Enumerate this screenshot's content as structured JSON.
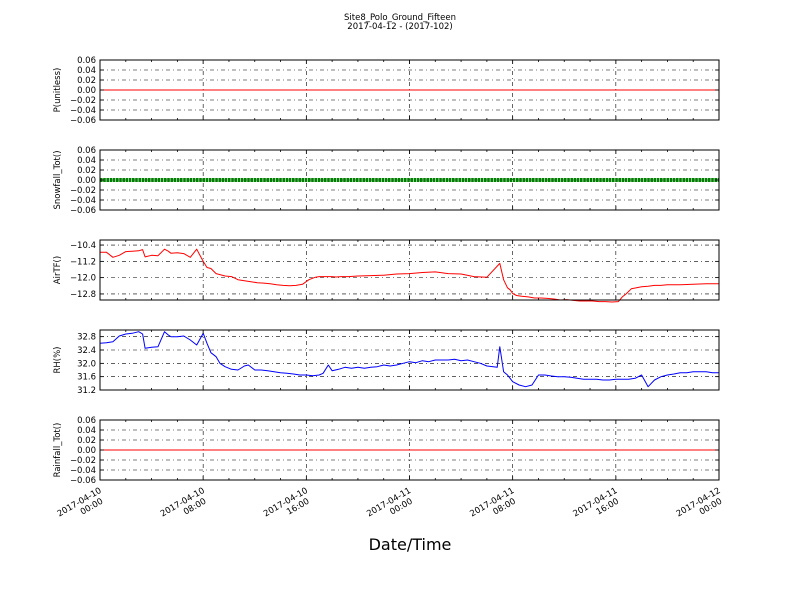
{
  "page": {
    "title_line1": "Site8_Polo_Ground_Fifteen",
    "title_line2": "2017-04-12 - (2017-102)",
    "x_axis_label": "Date/Time"
  },
  "colors": {
    "red": "#ff0000",
    "green": "#008000",
    "blue": "#0000ff",
    "axis": "#000000",
    "grid": "#000000"
  },
  "chart_data": [
    {
      "type": "line",
      "ylabel": "P(unitless)",
      "ylim": [
        -0.06,
        0.06
      ],
      "yticks": [
        0.06,
        0.04,
        0.02,
        0.0,
        -0.02,
        -0.04,
        -0.06
      ],
      "ytick_labels": [
        "0.06",
        "0.04",
        "0.02",
        "0.00",
        "−0.02",
        "−0.04",
        "−0.06"
      ],
      "grid": true,
      "series": [
        {
          "color": "#ff0000",
          "marker": "none",
          "x": [
            0,
            48
          ],
          "y": [
            0,
            0
          ]
        }
      ]
    },
    {
      "type": "line",
      "ylabel": "Snowfall_Tot()",
      "ylim": [
        -0.06,
        0.06
      ],
      "yticks": [
        0.06,
        0.04,
        0.02,
        0.0,
        -0.02,
        -0.04,
        -0.06
      ],
      "ytick_labels": [
        "0.06",
        "0.04",
        "0.02",
        "0.00",
        "−0.02",
        "−0.04",
        "−0.06"
      ],
      "grid": true,
      "series": [
        {
          "color": "#008000",
          "marker": "dot",
          "x": [
            0,
            48
          ],
          "y": [
            0,
            0
          ]
        }
      ]
    },
    {
      "type": "line",
      "ylabel": "AirTF()",
      "ylim": [
        -13.1,
        -10.15
      ],
      "yticks": [
        -10.4,
        -11.2,
        -12.0,
        -12.8
      ],
      "ytick_labels": [
        "−10.4",
        "−11.2",
        "−12.0",
        "−12.8"
      ],
      "grid": true,
      "series": [
        {
          "color": "#ff0000",
          "marker": "none",
          "x": [
            0,
            0.5,
            1.0,
            1.5,
            2.0,
            2.5,
            3.0,
            3.3,
            3.5,
            4.0,
            4.5,
            5.0,
            5.3,
            5.5,
            6.0,
            6.5,
            7.0,
            7.5,
            8.0,
            8.3,
            8.6,
            9.0,
            9.3,
            9.7,
            10.2,
            10.7,
            11.2,
            11.7,
            12.2,
            12.7,
            13.2,
            13.7,
            14.2,
            14.7,
            15.2,
            15.7,
            16.2,
            16.7,
            17.0,
            17.4,
            17.7,
            18.0,
            18.3,
            18.7,
            19.3,
            20,
            21,
            22,
            23,
            24,
            25,
            26,
            27,
            28,
            29,
            30,
            31,
            31.3,
            31.6,
            31.8,
            32.0,
            32.3,
            32.7,
            33.2,
            33.7,
            34.2,
            34.7,
            35.2,
            35.7,
            36.2,
            36.7,
            37.2,
            37.7,
            38.2,
            38.7,
            39.2,
            39.7,
            40.2,
            40.5,
            40.8,
            41.2,
            41.6,
            42.0,
            42.5,
            43.0,
            43.5,
            44,
            45,
            46,
            47,
            48
          ],
          "y": [
            -10.75,
            -10.75,
            -11.0,
            -10.9,
            -10.72,
            -10.7,
            -10.68,
            -10.62,
            -10.98,
            -10.9,
            -10.92,
            -10.6,
            -10.7,
            -10.8,
            -10.78,
            -10.82,
            -11.0,
            -10.6,
            -11.2,
            -11.5,
            -11.55,
            -11.8,
            -11.85,
            -11.92,
            -11.95,
            -12.1,
            -12.15,
            -12.2,
            -12.25,
            -12.27,
            -12.3,
            -12.35,
            -12.38,
            -12.4,
            -12.38,
            -12.33,
            -12.1,
            -11.98,
            -11.95,
            -11.95,
            -11.95,
            -11.95,
            -11.97,
            -11.95,
            -11.95,
            -11.92,
            -11.9,
            -11.88,
            -11.82,
            -11.8,
            -11.75,
            -11.72,
            -11.8,
            -11.82,
            -11.95,
            -11.98,
            -11.3,
            -12.1,
            -12.5,
            -12.6,
            -12.78,
            -12.88,
            -12.92,
            -12.95,
            -13.0,
            -13.0,
            -13.02,
            -13.05,
            -13.1,
            -13.08,
            -13.12,
            -13.15,
            -13.15,
            -13.15,
            -13.18,
            -13.18,
            -13.2,
            -13.18,
            -12.95,
            -12.8,
            -12.55,
            -12.5,
            -12.45,
            -12.42,
            -12.38,
            -12.38,
            -12.35,
            -12.35,
            -12.33,
            -12.3,
            -12.3
          ]
        }
      ]
    },
    {
      "type": "line",
      "ylabel": "RH(%)",
      "ylim": [
        31.2,
        33.0
      ],
      "yticks": [
        32.8,
        32.4,
        32.0,
        31.6,
        31.2
      ],
      "ytick_labels": [
        "32.8",
        "32.4",
        "32.0",
        "31.6",
        "31.2"
      ],
      "grid": true,
      "series": [
        {
          "color": "#0000ff",
          "marker": "none",
          "x": [
            0,
            0.5,
            1.0,
            1.5,
            2.0,
            2.5,
            3.0,
            3.3,
            3.5,
            4.0,
            4.5,
            5.0,
            5.3,
            5.5,
            6.0,
            6.5,
            7.0,
            7.5,
            8.0,
            8.3,
            8.6,
            9.0,
            9.3,
            9.7,
            10.2,
            10.7,
            11.2,
            11.5,
            12.0,
            12.5,
            13.0,
            13.5,
            14.0,
            14.5,
            15.0,
            15.5,
            16.0,
            16.5,
            17.0,
            17.3,
            17.7,
            18.0,
            18.5,
            19.0,
            19.5,
            20,
            20.5,
            21,
            21.5,
            22,
            22.5,
            23,
            23.5,
            24,
            24.5,
            25,
            25.5,
            26,
            26.5,
            27,
            27.5,
            28,
            28.5,
            29,
            29.5,
            30,
            30.5,
            30.8,
            31.0,
            31.3,
            31.6,
            32.0,
            32.5,
            33.0,
            33.5,
            34.0,
            34.5,
            35.0,
            35.5,
            36.0,
            36.5,
            37.0,
            37.5,
            38.0,
            38.5,
            39.0,
            39.5,
            40.0,
            40.5,
            41.0,
            41.5,
            42.0,
            42.5,
            43.0,
            43.5,
            44,
            44.5,
            45,
            45.5,
            46,
            46.5,
            47,
            47.5,
            48
          ],
          "y": [
            32.6,
            32.62,
            32.65,
            32.82,
            32.88,
            32.9,
            32.95,
            32.88,
            32.45,
            32.48,
            32.5,
            32.95,
            32.85,
            32.8,
            32.8,
            32.82,
            32.7,
            32.55,
            32.9,
            32.6,
            32.32,
            32.2,
            32.0,
            31.9,
            31.82,
            31.8,
            31.92,
            31.95,
            31.8,
            31.8,
            31.78,
            31.75,
            31.72,
            31.7,
            31.68,
            31.65,
            31.65,
            31.63,
            31.65,
            31.7,
            31.95,
            31.78,
            31.82,
            31.88,
            31.85,
            31.88,
            31.85,
            31.88,
            31.9,
            31.95,
            31.92,
            31.95,
            32.0,
            32.05,
            32.02,
            32.08,
            32.05,
            32.1,
            32.1,
            32.1,
            32.12,
            32.08,
            32.1,
            32.05,
            32.0,
            31.92,
            31.9,
            31.88,
            32.5,
            31.75,
            31.65,
            31.45,
            31.35,
            31.3,
            31.35,
            31.65,
            31.65,
            31.62,
            31.6,
            31.6,
            31.58,
            31.55,
            31.52,
            31.52,
            31.52,
            31.5,
            31.5,
            31.52,
            31.52,
            31.52,
            31.55,
            31.65,
            31.3,
            31.5,
            31.6,
            31.65,
            31.68,
            31.72,
            31.72,
            31.75,
            31.75,
            31.75,
            31.72,
            31.72
          ]
        }
      ]
    },
    {
      "type": "line",
      "ylabel": "Rainfall_Tot()",
      "ylim": [
        -0.06,
        0.06
      ],
      "yticks": [
        0.06,
        0.04,
        0.02,
        0.0,
        -0.02,
        -0.04,
        -0.06
      ],
      "ytick_labels": [
        "0.06",
        "0.04",
        "0.02",
        "0.00",
        "−0.02",
        "−0.04",
        "−0.06"
      ],
      "grid": true,
      "series": [
        {
          "color": "#ff0000",
          "marker": "none",
          "x": [
            0,
            48
          ],
          "y": [
            0,
            0
          ]
        }
      ]
    }
  ],
  "x_axis": {
    "unit": "hours since 2017-04-10 00:00",
    "xlim": [
      0,
      48
    ],
    "ticks": [
      0,
      8,
      16,
      24,
      32,
      40,
      48
    ],
    "tick_labels": [
      [
        "2017-04-10",
        "00:00"
      ],
      [
        "2017-04-10",
        "08:00"
      ],
      [
        "2017-04-10",
        "16:00"
      ],
      [
        "2017-04-11",
        "00:00"
      ],
      [
        "2017-04-11",
        "08:00"
      ],
      [
        "2017-04-11",
        "16:00"
      ],
      [
        "2017-04-12",
        "00:00"
      ]
    ]
  }
}
